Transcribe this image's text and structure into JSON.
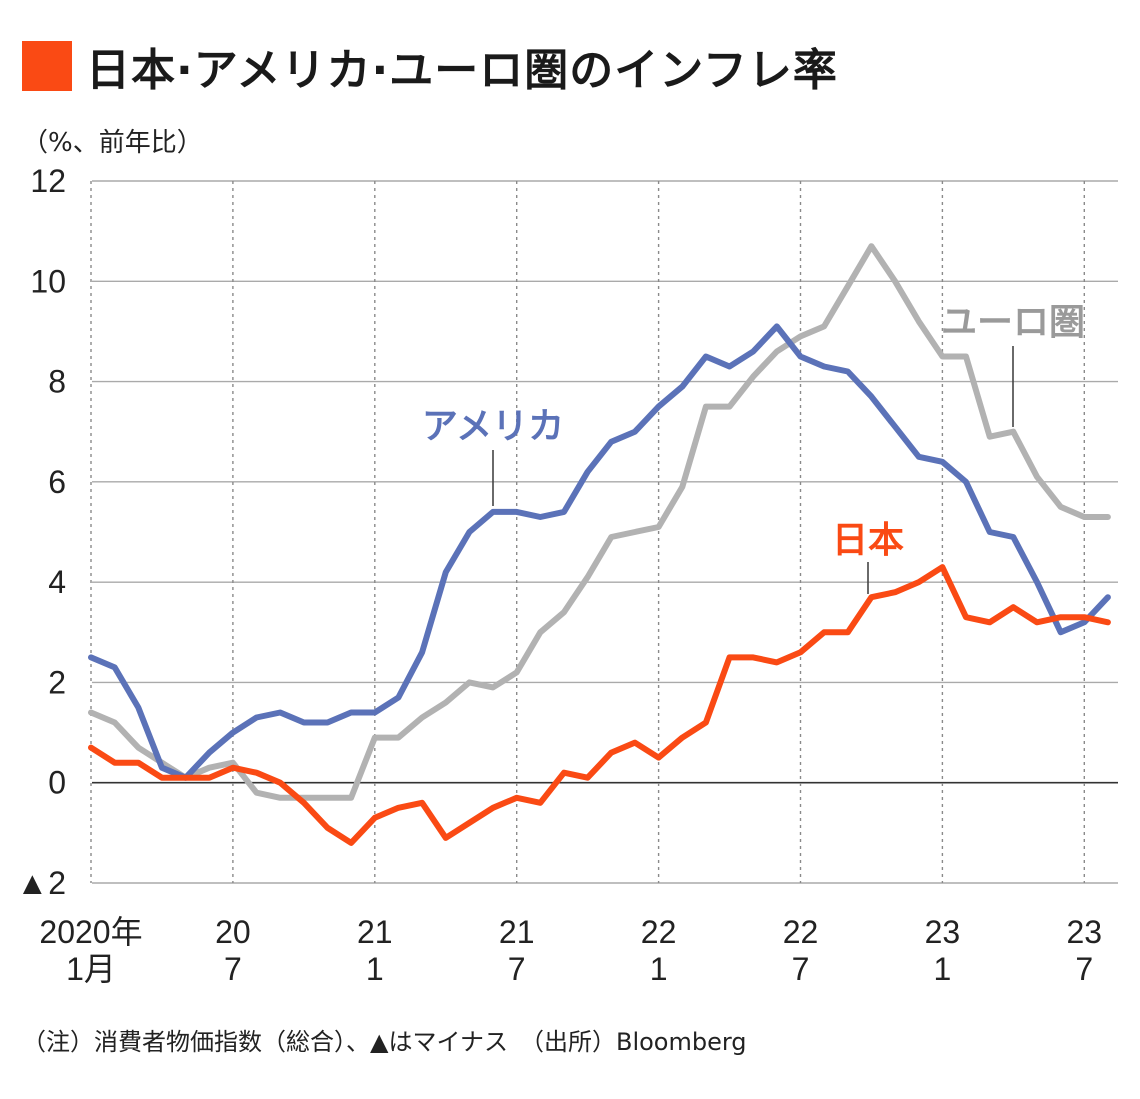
{
  "title": "日本·アメリカ·ユーロ圏のインフレ率",
  "unit_label": "（%、前年比）",
  "note": "（注）消費者物価指数（総合）、▲はマイナス　（出所）Bloomberg",
  "colors": {
    "japan": "#fa4a14",
    "usa": "#5b72b8",
    "euro": "#b2b2b2",
    "swatch": "#fa4a14"
  },
  "chart_data": {
    "type": "line",
    "title": "日本·アメリカ·ユーロ圏のインフレ率",
    "ylabel": "（%、前年比）",
    "ylim": [
      -2,
      12
    ],
    "yticks": [
      -2,
      0,
      2,
      4,
      6,
      8,
      10,
      12
    ],
    "ytick_labels": [
      "▲2",
      "0",
      "2",
      "4",
      "6",
      "8",
      "10",
      "12"
    ],
    "xlim": [
      0,
      43
    ],
    "xticks": [
      {
        "x": 0,
        "top": "2020年",
        "bottom": "1月"
      },
      {
        "x": 6,
        "top": "20",
        "bottom": "7"
      },
      {
        "x": 12,
        "top": "21",
        "bottom": "1"
      },
      {
        "x": 18,
        "top": "21",
        "bottom": "7"
      },
      {
        "x": 24,
        "top": "22",
        "bottom": "1"
      },
      {
        "x": 30,
        "top": "22",
        "bottom": "7"
      },
      {
        "x": 36,
        "top": "23",
        "bottom": "1"
      },
      {
        "x": 42,
        "top": "23",
        "bottom": "7"
      }
    ],
    "grid": true,
    "series": [
      {
        "name": "ユーロ圏",
        "color": "#b2b2b2",
        "values": [
          1.4,
          1.2,
          0.7,
          0.4,
          0.1,
          0.3,
          0.4,
          -0.2,
          -0.3,
          -0.3,
          -0.3,
          -0.3,
          0.9,
          0.9,
          1.3,
          1.6,
          2.0,
          1.9,
          2.2,
          3.0,
          3.4,
          4.1,
          4.9,
          5.0,
          5.1,
          5.9,
          7.5,
          7.5,
          8.1,
          8.6,
          8.9,
          9.1,
          9.9,
          10.7,
          10.0,
          9.2,
          8.5,
          8.5,
          6.9,
          7.0,
          6.1,
          5.5,
          5.3,
          5.3
        ]
      },
      {
        "name": "アメリカ",
        "color": "#5b72b8",
        "values": [
          2.5,
          2.3,
          1.5,
          0.3,
          0.1,
          0.6,
          1.0,
          1.3,
          1.4,
          1.2,
          1.2,
          1.4,
          1.4,
          1.7,
          2.6,
          4.2,
          5.0,
          5.4,
          5.4,
          5.3,
          5.4,
          6.2,
          6.8,
          7.0,
          7.5,
          7.9,
          8.5,
          8.3,
          8.6,
          9.1,
          8.5,
          8.3,
          8.2,
          7.7,
          7.1,
          6.5,
          6.4,
          6.0,
          5.0,
          4.9,
          4.0,
          3.0,
          3.2,
          3.7
        ]
      },
      {
        "name": "日本",
        "color": "#fa4a14",
        "values": [
          0.7,
          0.4,
          0.4,
          0.1,
          0.1,
          0.1,
          0.3,
          0.2,
          0.0,
          -0.4,
          -0.9,
          -1.2,
          -0.7,
          -0.5,
          -0.4,
          -1.1,
          -0.8,
          -0.5,
          -0.3,
          -0.4,
          0.2,
          0.1,
          0.6,
          0.8,
          0.5,
          0.9,
          1.2,
          2.5,
          2.5,
          2.4,
          2.6,
          3.0,
          3.0,
          3.7,
          3.8,
          4.0,
          4.3,
          3.3,
          3.2,
          3.5,
          3.2,
          3.3,
          3.3,
          3.2
        ]
      }
    ]
  }
}
